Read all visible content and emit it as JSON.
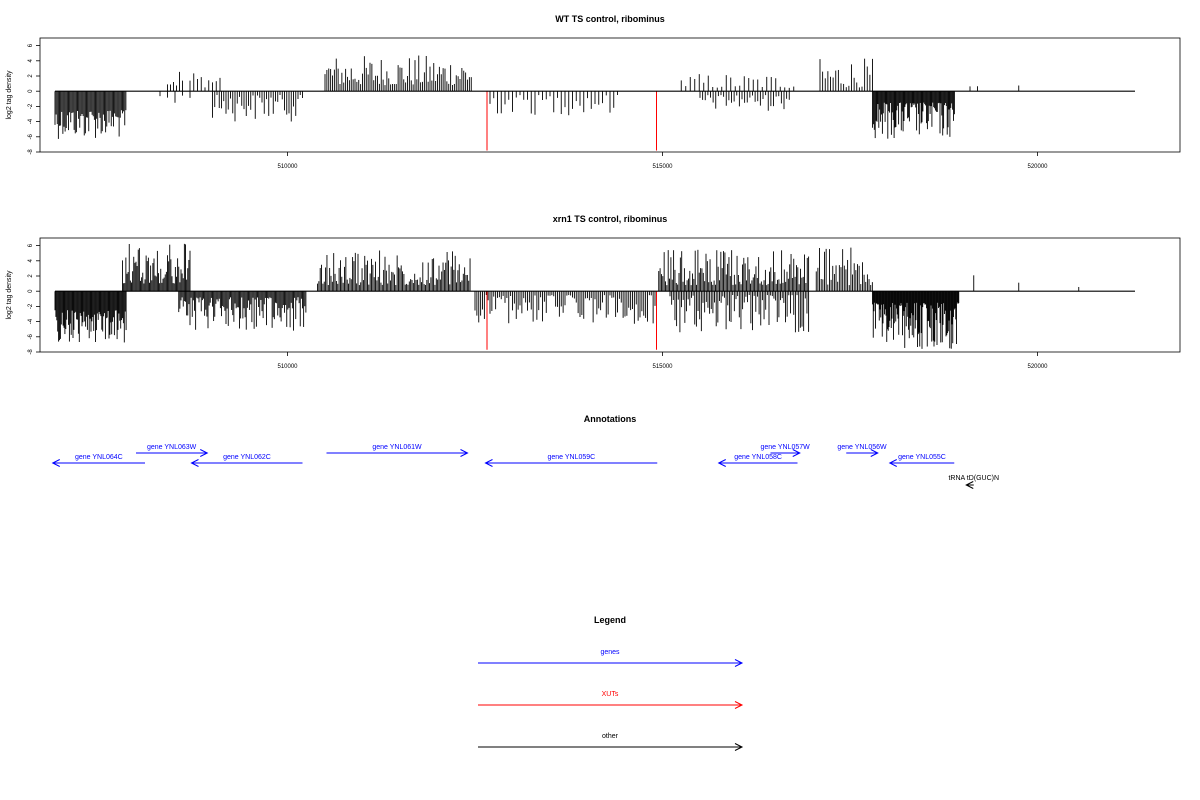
{
  "chart_data": [
    {
      "type": "bar",
      "title": "WT TS control, ribominus",
      "ylabel": "log2 tag density",
      "xlim": [
        506700,
        521900
      ],
      "ylim": [
        -8,
        7
      ],
      "yticks": [
        -8,
        -6,
        -4,
        -2,
        0,
        2,
        4,
        6
      ],
      "xticks": [
        510000,
        515000,
        520000
      ],
      "xtick_labels": [
        "510000",
        "515000",
        "520000"
      ],
      "baseline_range": [
        506900,
        521300
      ],
      "colors": {
        "density": "#000000",
        "xut": "#ff0000"
      },
      "clusters": [
        {
          "x": [
            506900,
            507850
          ],
          "sign": -1,
          "min": 2.5,
          "max": 6.3,
          "step": 15
        },
        {
          "x": [
            508400,
            508600
          ],
          "sign": 1,
          "min": 0.5,
          "max": 3.4,
          "step": 40
        },
        {
          "x": [
            508700,
            509100
          ],
          "sign": 1,
          "min": 0.5,
          "max": 2.9,
          "step": 50
        },
        {
          "x": [
            508300,
            508700
          ],
          "sign": -1,
          "min": 0.5,
          "max": 1.6,
          "step": 100
        },
        {
          "x": [
            509000,
            510200
          ],
          "sign": -1,
          "min": 0.5,
          "max": 4.0,
          "step": 30
        },
        {
          "x": [
            510500,
            512450
          ],
          "sign": 1,
          "min": 0.8,
          "max": 4.8,
          "step": 25
        },
        {
          "x": [
            512700,
            514400
          ],
          "sign": -1,
          "min": 0.5,
          "max": 3.2,
          "step": 50
        },
        {
          "x": [
            515250,
            516800
          ],
          "sign": 1,
          "min": 0.4,
          "max": 2.4,
          "step": 60
        },
        {
          "x": [
            515500,
            516700
          ],
          "sign": -1,
          "min": 0.5,
          "max": 2.6,
          "step": 35
        },
        {
          "x": [
            517100,
            517800
          ],
          "sign": 1,
          "min": 0.5,
          "max": 4.4,
          "step": 35
        },
        {
          "x": [
            517800,
            518900
          ],
          "sign": -1,
          "min": 1.5,
          "max": 6.3,
          "step": 12
        },
        {
          "x": [
            519100,
            519200
          ],
          "sign": 1,
          "min": 0.5,
          "max": 1.0,
          "step": 100
        },
        {
          "x": [
            519750,
            519800
          ],
          "sign": 1,
          "min": 0.5,
          "max": 1.0,
          "step": 100
        }
      ],
      "xut_spikes": [
        {
          "x": 512660,
          "value": -7.8
        },
        {
          "x": 514920,
          "value": -7.8
        }
      ]
    },
    {
      "type": "bar",
      "title": "xrn1 TS control, ribominus",
      "ylabel": "log2 tag density",
      "xlim": [
        506700,
        521900
      ],
      "ylim": [
        -8,
        7
      ],
      "yticks": [
        -8,
        -6,
        -4,
        -2,
        0,
        2,
        4,
        6
      ],
      "xticks": [
        510000,
        515000,
        520000
      ],
      "xtick_labels": [
        "510000",
        "515000",
        "520000"
      ],
      "baseline_range": [
        506900,
        521300
      ],
      "colors": {
        "density": "#000000",
        "xut": "#ff0000"
      },
      "clusters": [
        {
          "x": [
            506900,
            507850
          ],
          "sign": -1,
          "min": 2.5,
          "max": 6.8,
          "step": 12
        },
        {
          "x": [
            507800,
            508700
          ],
          "sign": 1,
          "min": 1.0,
          "max": 6.3,
          "step": 15
        },
        {
          "x": [
            508550,
            510250
          ],
          "sign": -1,
          "min": 0.8,
          "max": 5.3,
          "step": 15
        },
        {
          "x": [
            510400,
            512450
          ],
          "sign": 1,
          "min": 0.8,
          "max": 5.5,
          "step": 18
        },
        {
          "x": [
            512500,
            514900
          ],
          "sign": -1,
          "min": 0.5,
          "max": 4.3,
          "step": 25
        },
        {
          "x": [
            514950,
            516950
          ],
          "sign": 1,
          "min": 0.8,
          "max": 5.5,
          "step": 18
        },
        {
          "x": [
            515100,
            516950
          ],
          "sign": -1,
          "min": 0.5,
          "max": 5.5,
          "step": 22
        },
        {
          "x": [
            517050,
            517800
          ],
          "sign": 1,
          "min": 0.8,
          "max": 5.8,
          "step": 22
        },
        {
          "x": [
            517800,
            518950
          ],
          "sign": -1,
          "min": 1.5,
          "max": 7.6,
          "step": 10
        },
        {
          "x": [
            519150,
            519200
          ],
          "sign": 1,
          "min": 2.0,
          "max": 2.8,
          "step": 100
        },
        {
          "x": [
            519750,
            519800
          ],
          "sign": 1,
          "min": 0.5,
          "max": 1.2,
          "step": 100
        },
        {
          "x": [
            520550,
            520600
          ],
          "sign": 1,
          "min": 0.5,
          "max": 1.0,
          "step": 100
        }
      ],
      "xut_spikes": [
        {
          "x": 512660,
          "value": -7.7
        },
        {
          "x": 514920,
          "value": -7.7
        }
      ]
    }
  ],
  "annotations": {
    "title": "Annotations",
    "items": [
      {
        "label": "gene YNL064C",
        "start": 508100,
        "end": 506870,
        "strand": "-",
        "row": 1,
        "category": "genes"
      },
      {
        "label": "gene YNL063W",
        "start": 507980,
        "end": 508930,
        "strand": "+",
        "row": 0,
        "category": "genes"
      },
      {
        "label": "gene YNL062C",
        "start": 510200,
        "end": 508720,
        "strand": "-",
        "row": 1,
        "category": "genes"
      },
      {
        "label": "gene YNL061W",
        "start": 510520,
        "end": 512400,
        "strand": "+",
        "row": 0,
        "category": "genes"
      },
      {
        "label": "gene YNL059C",
        "start": 514930,
        "end": 512640,
        "strand": "-",
        "row": 1,
        "category": "genes"
      },
      {
        "label": "gene YNL057W",
        "start": 516440,
        "end": 516830,
        "strand": "+",
        "row": 0,
        "category": "genes"
      },
      {
        "label": "gene YNL058C",
        "start": 516800,
        "end": 515750,
        "strand": "-",
        "row": 1,
        "category": "genes"
      },
      {
        "label": "gene YNL056W",
        "start": 517450,
        "end": 517870,
        "strand": "+",
        "row": 0,
        "category": "genes"
      },
      {
        "label": "gene YNL055C",
        "start": 518890,
        "end": 518030,
        "strand": "-",
        "row": 1,
        "category": "genes"
      },
      {
        "label": "tRNA tD(GUC)N",
        "start": 519150,
        "end": 519050,
        "strand": "-",
        "row": 2,
        "category": "other"
      }
    ]
  },
  "legend": {
    "title": "Legend",
    "entries": [
      {
        "label": "genes",
        "color": "#0000ff"
      },
      {
        "label": "XUTs",
        "color": "#ff0000"
      },
      {
        "label": "other",
        "color": "#000000"
      }
    ]
  }
}
